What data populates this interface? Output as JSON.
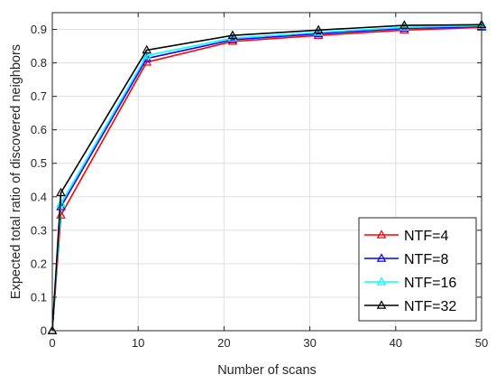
{
  "chart_data": {
    "type": "line",
    "title": "",
    "xlabel": "Number of scans",
    "ylabel": "Expected total ratio of discovered neighbors",
    "xlim": [
      0,
      50
    ],
    "ylim": [
      0,
      0.95
    ],
    "xticks": [
      0,
      10,
      20,
      30,
      40,
      50
    ],
    "yticks": [
      0,
      0.1,
      0.2,
      0.3,
      0.4,
      0.5,
      0.6,
      0.7,
      0.8,
      0.9
    ],
    "grid": true,
    "legend_position": "bottom-right",
    "marker": "triangle",
    "x": [
      0,
      1,
      11,
      21,
      31,
      41,
      50
    ],
    "series": [
      {
        "name": "NTF=4",
        "color": "#ff0000",
        "values": [
          0,
          0.345,
          0.802,
          0.864,
          0.882,
          0.898,
          0.906
        ]
      },
      {
        "name": "NTF=8",
        "color": "#0000ff",
        "values": [
          0,
          0.37,
          0.813,
          0.869,
          0.887,
          0.903,
          0.909
        ]
      },
      {
        "name": "NTF=16",
        "color": "#00ffff",
        "values": [
          0,
          0.38,
          0.822,
          0.874,
          0.891,
          0.906,
          0.911
        ]
      },
      {
        "name": "NTF=32",
        "color": "#000000",
        "values": [
          0,
          0.412,
          0.838,
          0.882,
          0.898,
          0.912,
          0.914
        ]
      }
    ]
  }
}
